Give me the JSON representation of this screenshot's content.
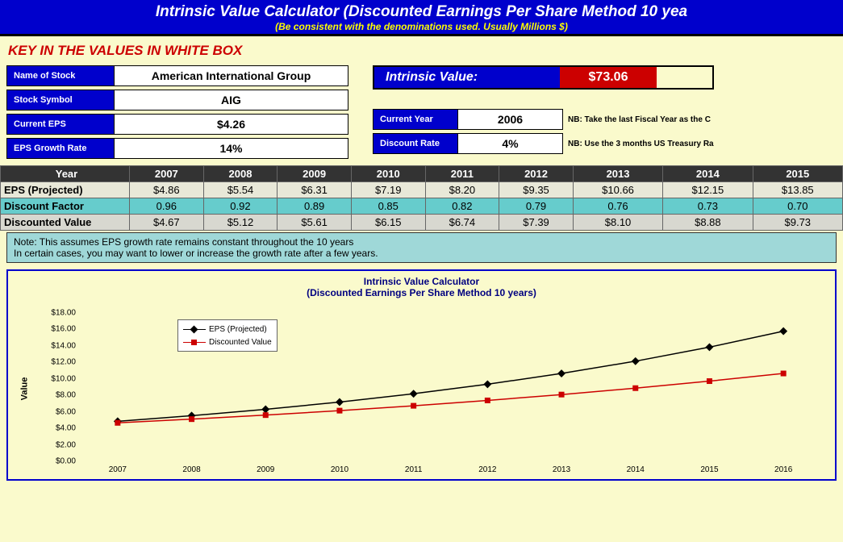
{
  "header": {
    "title": "Intrinsic Value Calculator (Discounted Earnings Per Share Method 10 yea",
    "subtitle": "(Be consistent with the denominations used. Usually Millions $)"
  },
  "key_in": "KEY IN THE VALUES IN WHITE BOX",
  "inputs": {
    "name_label": "Name of Stock",
    "name": "American International Group",
    "symbol_label": "Stock Symbol",
    "symbol": "AIG",
    "eps_label": "Current EPS",
    "eps": "$4.26",
    "growth_label": "EPS Growth Rate",
    "growth": "14%",
    "year_label": "Current Year",
    "year": "2006",
    "year_nb": "NB: Take the last Fiscal Year as the C",
    "discount_label": "Discount Rate",
    "discount": "4%",
    "discount_nb": "NB: Use the 3 months US Treasury Ra"
  },
  "iv": {
    "label": "Intrinsic Value:",
    "value": "$73.06"
  },
  "table": {
    "header": [
      "Year",
      "2007",
      "2008",
      "2009",
      "2010",
      "2011",
      "2012",
      "2013",
      "2014",
      "2015"
    ],
    "rows": [
      {
        "label": "EPS (Projected)",
        "cls": "row-eps",
        "cells": [
          "$4.86",
          "$5.54",
          "$6.31",
          "$7.19",
          "$8.20",
          "$9.35",
          "$10.66",
          "$12.15",
          "$13.85"
        ]
      },
      {
        "label": "Discount Factor",
        "cls": "row-df",
        "cells": [
          "0.96",
          "0.92",
          "0.89",
          "0.85",
          "0.82",
          "0.79",
          "0.76",
          "0.73",
          "0.70"
        ]
      },
      {
        "label": "Discounted Value",
        "cls": "row-dv",
        "cells": [
          "$4.67",
          "$5.12",
          "$5.61",
          "$6.15",
          "$6.74",
          "$7.39",
          "$8.10",
          "$8.88",
          "$9.73"
        ]
      }
    ]
  },
  "note": {
    "l1": "Note: This assumes EPS growth rate remains constant throughout the 10 years",
    "l2": "In certain cases, you may want to lower or increase the growth rate after a few years."
  },
  "chart": {
    "title1": "Intrinsic Value Calculator",
    "title2": "(Discounted Earnings Per Share Method 10 years)",
    "ylabel": "Value",
    "legend": {
      "s1": "EPS (Projected)",
      "s2": "Discounted Value"
    },
    "ymax": 18,
    "ystep": 2,
    "xlabels": [
      "2007",
      "2008",
      "2009",
      "2010",
      "2011",
      "2012",
      "2013",
      "2014",
      "2015",
      "2016"
    ],
    "series": {
      "eps": [
        4.86,
        5.54,
        6.31,
        7.19,
        8.2,
        9.35,
        10.66,
        12.15,
        13.85,
        15.79
      ],
      "discount": [
        4.67,
        5.12,
        5.61,
        6.15,
        6.74,
        7.39,
        8.1,
        8.88,
        9.73,
        10.66
      ]
    },
    "colors": {
      "eps": "#000000",
      "discount": "#cc0000",
      "grid": "#cccccc"
    }
  }
}
